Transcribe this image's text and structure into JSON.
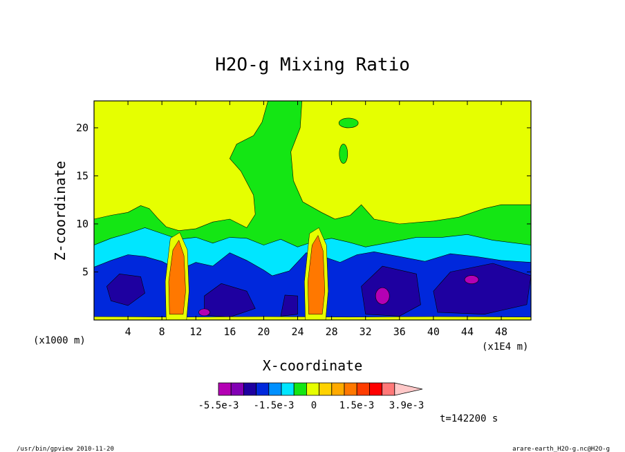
{
  "chart_data": {
    "type": "heatmap",
    "title": "H2O-g Mixing Ratio",
    "xlabel": "X-coordinate",
    "ylabel": "Z-coordinate",
    "x_unit_left": "(x1000 m)",
    "x_unit_right": "(x1E4 m)",
    "xlim": [
      0,
      51.5
    ],
    "ylim": [
      0,
      22.8
    ],
    "x_ticks": [
      4,
      8,
      12,
      16,
      20,
      24,
      28,
      32,
      36,
      40,
      44,
      48
    ],
    "y_ticks": [
      5,
      10,
      15,
      20
    ],
    "colorbar": {
      "levels": [
        -0.0055,
        -0.0015,
        0,
        0.0015,
        0.0039
      ],
      "tick_labels": [
        "-5.5e-3",
        "-1.5e-3",
        "0",
        "1.5e-3",
        "3.9e-3"
      ],
      "colors": [
        "#b400b4",
        "#8200b4",
        "#1e00a0",
        "#0028dc",
        "#0090ff",
        "#00e6ff",
        "#14e614",
        "#e6ff00",
        "#ffd200",
        "#ffaa00",
        "#ff7800",
        "#ff3c00",
        "#ff0000",
        "#ff7878",
        "#ffc8c8"
      ]
    },
    "regions": [
      {
        "color": "#e6ff00",
        "desc": "upper layer"
      },
      {
        "color": "#14e614",
        "desc": "mid layer band and central plume"
      },
      {
        "color": "#00e6ff",
        "desc": "layer near z 6-9"
      },
      {
        "color": "#0028dc",
        "desc": "layer near z 2-7"
      },
      {
        "color": "#1e00a0",
        "desc": "cores near surface"
      },
      {
        "color": "#b400b4",
        "desc": "minimum patches"
      },
      {
        "color": "#ff7800",
        "desc": "maximum columns at x~10 and x~26"
      }
    ],
    "time_label": "t=142200 s"
  },
  "footer": {
    "left": "/usr/bin/gpview  2010-11-20",
    "right": "arare-earth_H2O-g.nc@H2O-g"
  }
}
